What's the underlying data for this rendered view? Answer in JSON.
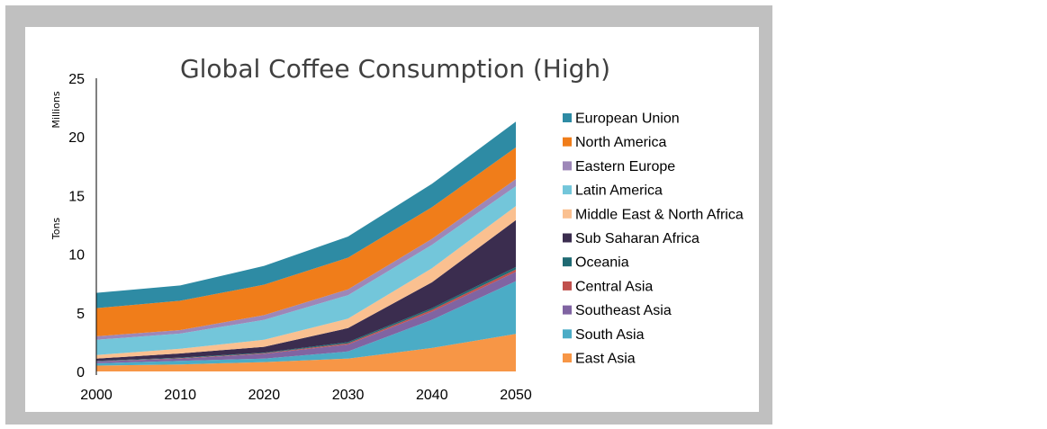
{
  "chart_data": {
    "type": "area",
    "stacked": true,
    "title": "Global Coffee Consumption (High)",
    "xlabel": "",
    "ylabel": "Tons",
    "y_unit_label": "Millions",
    "x": [
      2000,
      2010,
      2020,
      2030,
      2040,
      2050
    ],
    "x_tick_labels": [
      "2000",
      "2010",
      "2020",
      "2030",
      "2040",
      "2050"
    ],
    "ylim": [
      0,
      25
    ],
    "y_ticks": [
      0,
      5,
      10,
      15,
      20,
      25
    ],
    "y_tick_labels": [
      "0",
      "5",
      "10",
      "15",
      "20",
      "25"
    ],
    "grid": false,
    "legend_position": "right",
    "series": [
      {
        "name": "East Asia",
        "color": "#F79646",
        "values": [
          0.5,
          0.6,
          0.8,
          1.1,
          2.0,
          3.2
        ]
      },
      {
        "name": "South  Asia",
        "color": "#4BACC6",
        "values": [
          0.2,
          0.3,
          0.3,
          0.6,
          2.4,
          4.5
        ]
      },
      {
        "name": "Southeast Asia",
        "color": "#8064A2",
        "values": [
          0.15,
          0.2,
          0.4,
          0.6,
          0.7,
          0.8
        ]
      },
      {
        "name": "Central Asia",
        "color": "#C0504D",
        "values": [
          0.02,
          0.03,
          0.05,
          0.1,
          0.15,
          0.2
        ]
      },
      {
        "name": "Oceania",
        "color": "#1F6A73",
        "values": [
          0.03,
          0.05,
          0.05,
          0.1,
          0.15,
          0.2
        ]
      },
      {
        "name": "Sub Saharan Africa",
        "color": "#3B2D4F",
        "values": [
          0.2,
          0.35,
          0.5,
          1.2,
          2.2,
          4.0
        ]
      },
      {
        "name": "Middle East & North Africa",
        "color": "#FAC090",
        "values": [
          0.3,
          0.4,
          0.6,
          0.8,
          1.2,
          1.2
        ]
      },
      {
        "name": "Latin America",
        "color": "#73C6DA",
        "values": [
          1.3,
          1.3,
          1.7,
          2.0,
          2.0,
          1.7
        ]
      },
      {
        "name": "Eastern Europe",
        "color": "#9D87B8",
        "values": [
          0.3,
          0.3,
          0.4,
          0.5,
          0.5,
          0.6
        ]
      },
      {
        "name": "North America",
        "color": "#F07D1A",
        "values": [
          2.4,
          2.5,
          2.6,
          2.7,
          2.7,
          2.7
        ]
      },
      {
        "name": "European Union",
        "color": "#2E8BA4",
        "values": [
          1.3,
          1.3,
          1.6,
          1.8,
          2.0,
          2.2
        ]
      }
    ]
  }
}
